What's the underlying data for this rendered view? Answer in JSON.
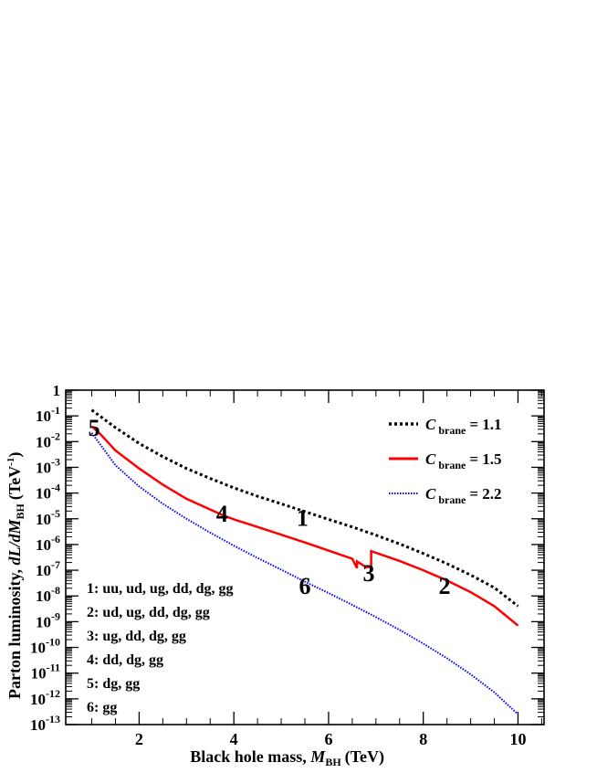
{
  "chart_data": {
    "type": "line",
    "xlabel": "Black hole mass,",
    "xlabel_symbol": "M",
    "xlabel_sub": "BH",
    "xlabel_unit": "(TeV)",
    "ylabel": "Parton luminosity,",
    "ylabel_symbol": "dL/dM",
    "ylabel_sub": "BH",
    "ylabel_unit": "(TeV",
    "ylabel_unit_sup": "-1",
    "ylabel_unit_close": ")",
    "xlim": [
      0.45,
      10.55
    ],
    "ylim_log10": [
      -13,
      0
    ],
    "yscale": "log",
    "xticks": [
      "2",
      "4",
      "6",
      "8",
      "10"
    ],
    "yticks": [
      "10",
      "10",
      "10",
      "10",
      "10",
      "10",
      "10",
      "10",
      "10",
      "10",
      "10",
      "10",
      "10",
      "1"
    ],
    "yticks_sup": [
      "-13",
      "-12",
      "-11",
      "-10",
      "-9",
      "-8",
      "-7",
      "-6",
      "-5",
      "-4",
      "-3",
      "-2",
      "-1",
      ""
    ],
    "yticks_value": [
      -13,
      -12,
      -11,
      -10,
      -9,
      -8,
      -7,
      -6,
      -5,
      -4,
      -3,
      -2,
      -1,
      0
    ],
    "legend": {
      "position": "top-right"
    },
    "series": [
      {
        "name_symbol": "C",
        "name_sub": "brane",
        "name_value": "= 1.1",
        "color": "#000000",
        "style": "dotted",
        "x": [
          1.0,
          1.5,
          2.0,
          2.5,
          3.0,
          3.5,
          4.0,
          4.5,
          5.0,
          5.5,
          6.0,
          6.5,
          7.0,
          7.5,
          8.0,
          8.5,
          9.0,
          9.5,
          10.0
        ],
        "y": [
          0.17,
          0.035,
          0.0085,
          0.0026,
          0.0009,
          0.00037,
          0.00016,
          7.5e-05,
          3.8e-05,
          1.9e-05,
          9.5e-06,
          4.8e-06,
          2.3e-06,
          1.05e-06,
          4.5e-07,
          1.8e-07,
          6.5e-08,
          2.1e-08,
          4e-09
        ]
      },
      {
        "name_symbol": "C",
        "name_sub": "brane",
        "name_value": "= 1.5",
        "color": "#ff0000",
        "style": "solid",
        "x": [
          1.0,
          1.2,
          1.5,
          2.0,
          2.5,
          3.0,
          3.5,
          3.8,
          4.0,
          4.5,
          5.0,
          5.5,
          6.0,
          6.5,
          6.6,
          6.6,
          6.8,
          6.9,
          6.9,
          7.5,
          8.0,
          8.5,
          9.0,
          9.5,
          10.0
        ],
        "y": [
          0.04,
          0.018,
          0.0045,
          0.0009,
          0.00021,
          6e-05,
          2.3e-05,
          1.3e-05,
          9.5e-06,
          4.8e-06,
          2.4e-06,
          1.2e-06,
          5.8e-07,
          2.8e-07,
          1.2e-07,
          2.2e-07,
          1.3e-07,
          1.4e-07,
          5.5e-07,
          2.3e-07,
          1e-07,
          4e-08,
          1.4e-08,
          4e-09,
          7e-10
        ]
      },
      {
        "name_symbol": "C",
        "name_sub": "brane",
        "name_value": "= 2.2",
        "color": "#0000ff",
        "style": "dotted",
        "x": [
          1.0,
          1.5,
          2.0,
          2.5,
          3.0,
          3.5,
          4.0,
          4.5,
          5.0,
          5.5,
          6.0,
          6.5,
          7.0,
          7.5,
          8.0,
          8.5,
          9.0,
          9.5,
          10.0
        ],
        "y": [
          0.022,
          0.0012,
          0.00018,
          3.8e-05,
          1e-05,
          2.9e-06,
          9e-07,
          3e-07,
          1.05e-07,
          3.6e-08,
          1.3e-08,
          4.5e-09,
          1.5e-09,
          4.8e-10,
          1.4e-10,
          3.8e-11,
          9e-12,
          1.8e-12,
          2.5e-13
        ]
      }
    ],
    "region_labels": [
      {
        "text": "1",
        "x": 5.45,
        "y": 1.1e-05
      },
      {
        "text": "2",
        "x": 8.45,
        "y": 2.5e-08
      },
      {
        "text": "3",
        "x": 6.85,
        "y": 8e-08
      },
      {
        "text": "4",
        "x": 3.75,
        "y": 1.6e-05
      },
      {
        "text": "5",
        "x": 1.05,
        "y": 0.035
      },
      {
        "text": "6",
        "x": 5.5,
        "y": 2.5e-08
      }
    ],
    "annotations": [
      "1: uu, ud, ug, dd, dg, gg",
      "2: ud, ug, dd, dg, gg",
      "3: ug, dd, dg, gg",
      "4: dd, dg, gg",
      "5: dg, gg",
      "6: gg"
    ]
  }
}
